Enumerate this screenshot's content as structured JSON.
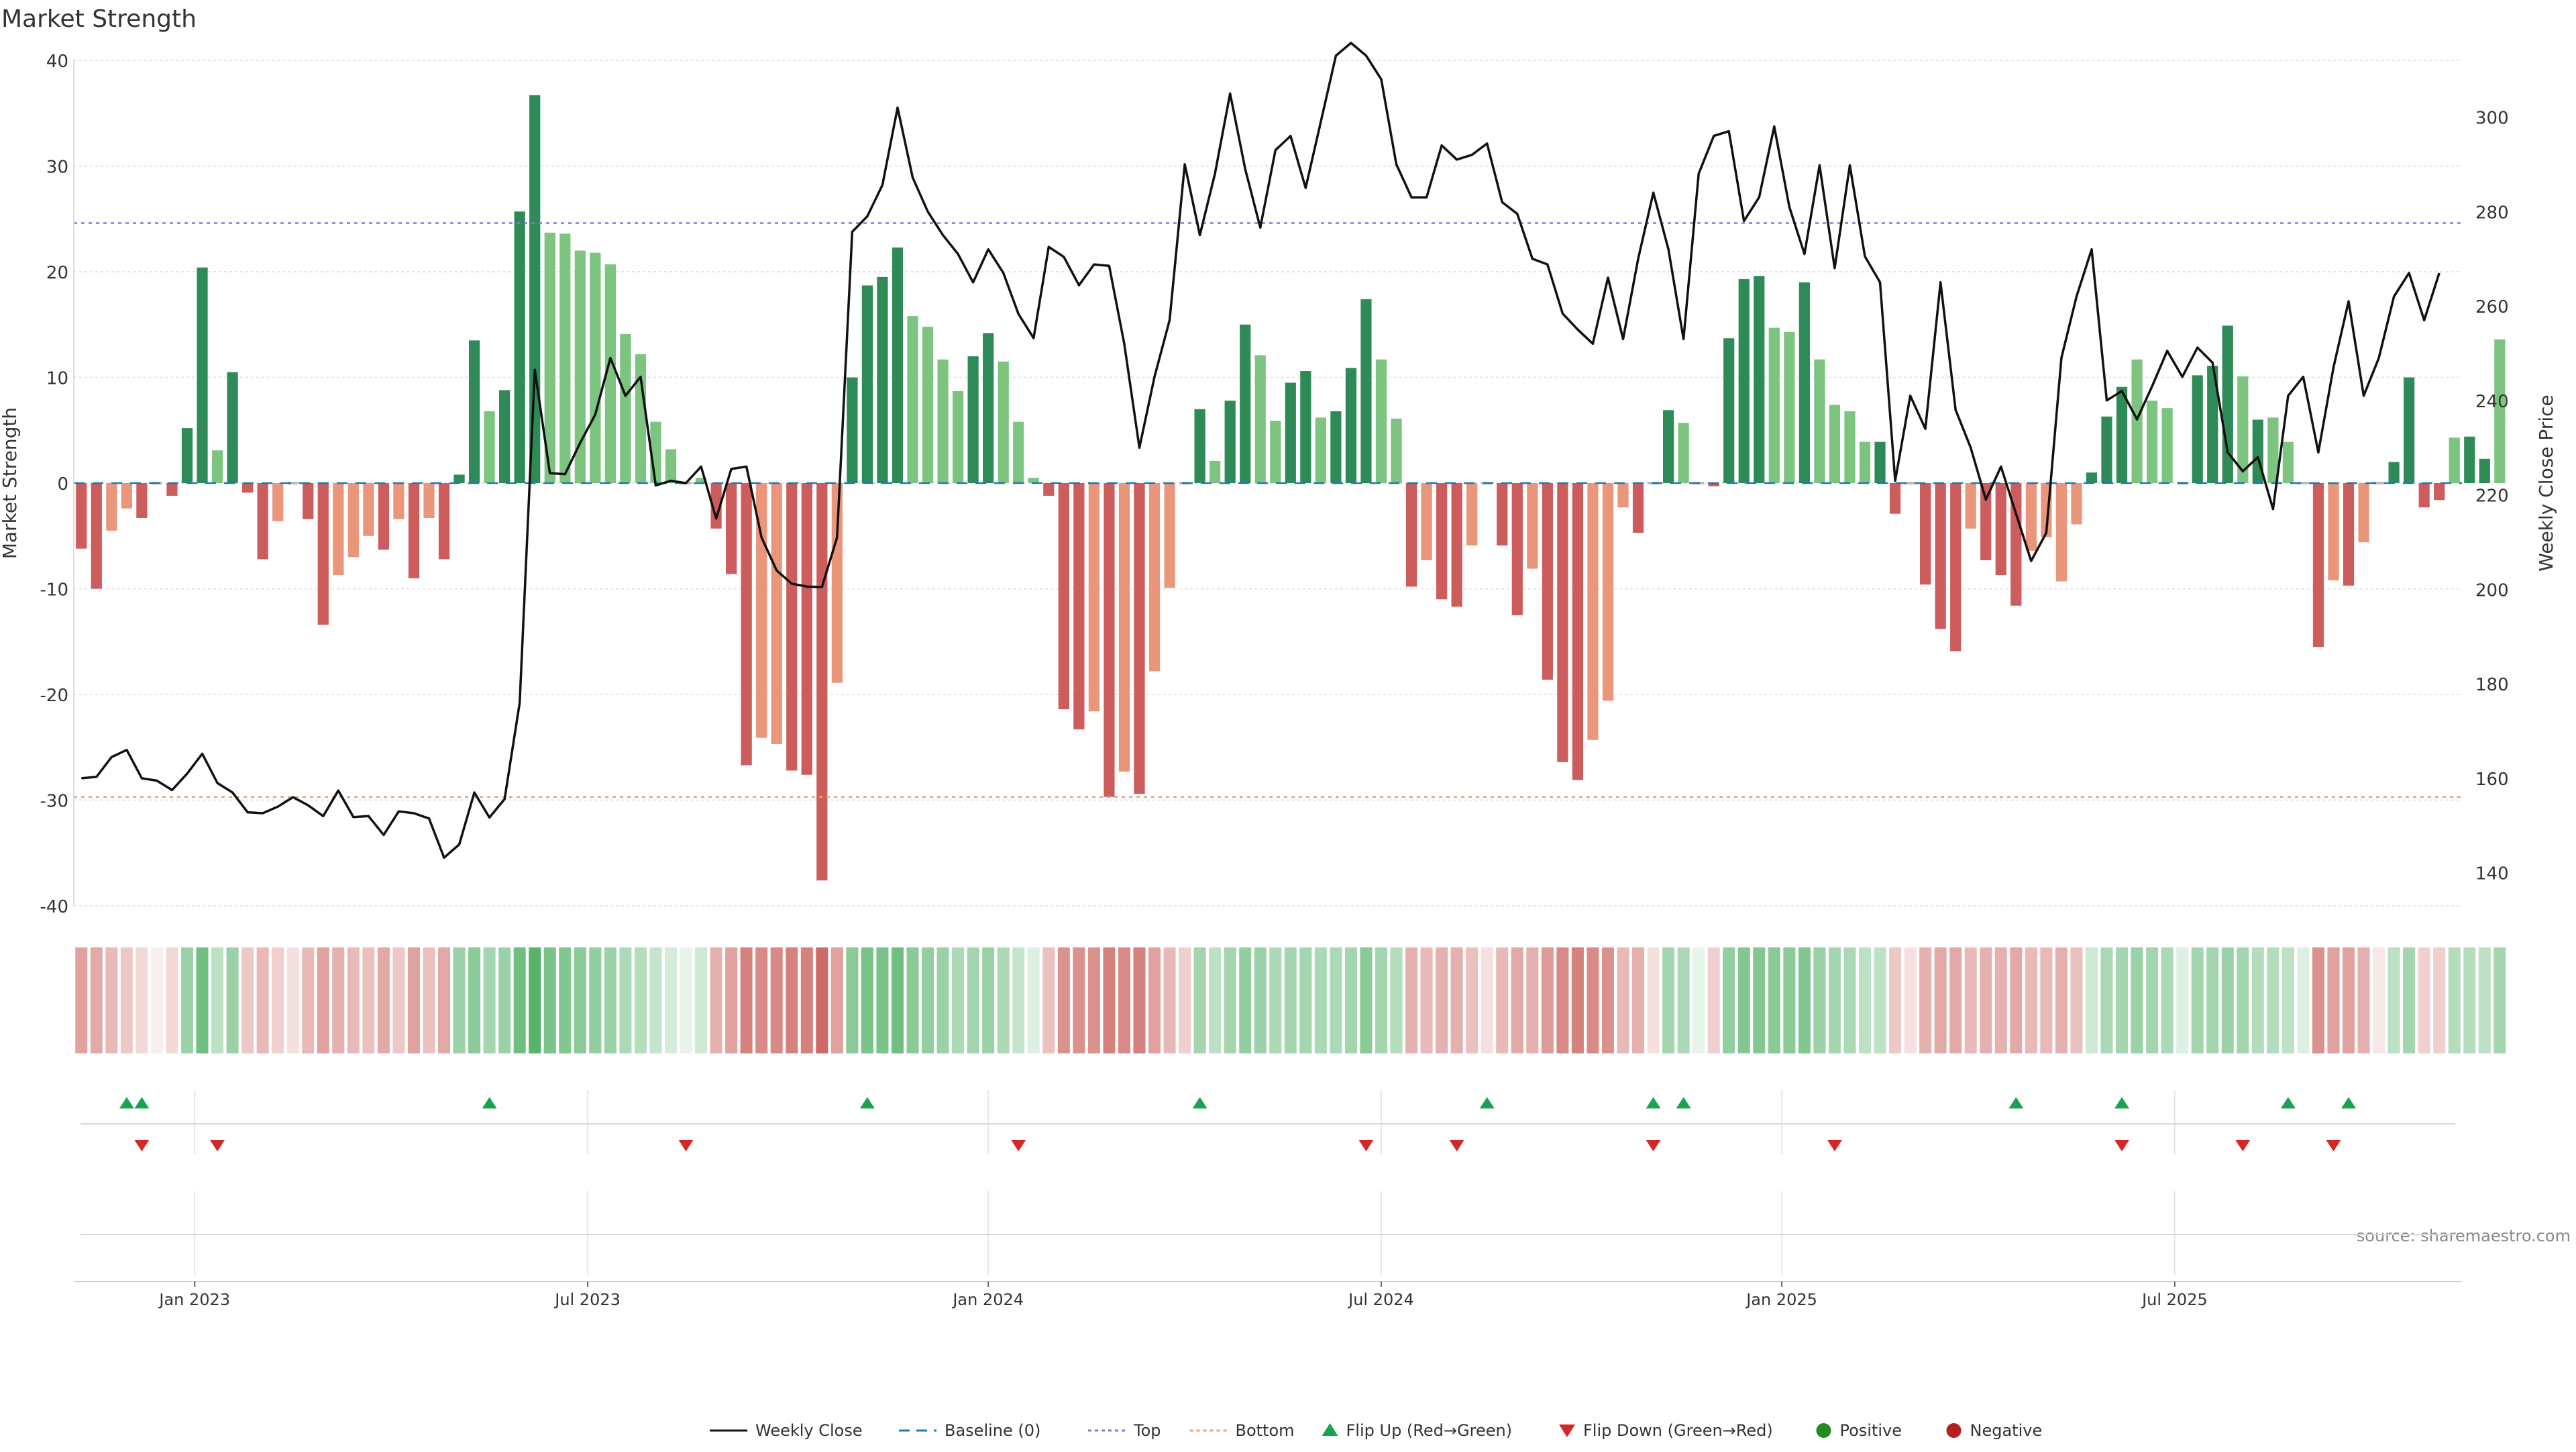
{
  "title": "Market Strength",
  "source": "source: sharemaestro.com",
  "colors": {
    "strong_green": "#2e8b57",
    "light_green": "#7cc47f",
    "strong_red": "#cd5c5c",
    "light_red": "#e9967a",
    "line": "#111111",
    "top": "#9370db",
    "bottom": "#e9a36f",
    "baseline": "#1f77b4",
    "flip_up": "#1aa251",
    "flip_down": "#d62728",
    "positive": "#228b22",
    "negative": "#b22222"
  },
  "chart_data": {
    "type": "bar+line",
    "title": "Market Strength",
    "ylabel": "Market Strength",
    "y2label": "Weekly Close Price",
    "ylim": [
      -40,
      40
    ],
    "y2lim": [
      133,
      312
    ],
    "yticks": [
      40,
      30,
      20,
      10,
      0,
      -10,
      -20,
      -30,
      -40
    ],
    "y2ticks": [
      300,
      280,
      260,
      240,
      220,
      200,
      180,
      160,
      140
    ],
    "top_line": 24.6,
    "bottom_line": -29.7,
    "xtick_labels": [
      {
        "label": "Jan 2023",
        "week": 8
      },
      {
        "label": "Jul 2023",
        "week": 34
      },
      {
        "label": "Jan 2024",
        "week": 60.5
      },
      {
        "label": "Jul 2024",
        "week": 86.5
      },
      {
        "label": "Jan 2025",
        "week": 113
      },
      {
        "label": "Jul 2025",
        "week": 139
      }
    ],
    "weeks": 158,
    "strength": [
      -6.2,
      -10,
      -4.5,
      -2.4,
      -3.3,
      0,
      -1.2,
      5.2,
      20.4,
      3.1,
      10.5,
      -0.9,
      -7.2,
      -3.6,
      0,
      -3.4,
      -13.4,
      -8.7,
      -7,
      -5,
      -6.3,
      -3.4,
      -9,
      -3.3,
      -7.2,
      0.8,
      13.5,
      6.8,
      8.8,
      25.7,
      36.7,
      23.7,
      23.6,
      22,
      21.8,
      20.7,
      14.1,
      12.2,
      5.8,
      3.2,
      0,
      0.5,
      -4.3,
      -8.6,
      -26.7,
      -24.1,
      -24.7,
      -27.2,
      -27.6,
      -37.6,
      -18.9,
      10,
      18.7,
      19.5,
      22.3,
      15.8,
      14.8,
      11.7,
      8.7,
      12,
      14.2,
      11.5,
      5.8,
      0.5,
      -1.2,
      -21.4,
      -23.3,
      -21.6,
      -29.7,
      -27.3,
      -29.4,
      -17.8,
      -9.9,
      0,
      7,
      2.1,
      7.8,
      15,
      12.1,
      5.9,
      9.5,
      10.6,
      6.2,
      6.8,
      10.9,
      17.4,
      11.7,
      6.1,
      -9.8,
      -7.3,
      -11,
      -11.7,
      -5.9,
      0,
      -5.9,
      -12.5,
      -8.1,
      -18.6,
      -26.4,
      -28.1,
      -24.3,
      -20.6,
      -2.3,
      -4.7,
      0,
      6.9,
      5.7,
      0,
      -0.3,
      13.7,
      19.3,
      19.6,
      14.7,
      14.3,
      19,
      11.7,
      7.4,
      6.8,
      3.9,
      3.9,
      -2.9,
      0,
      -9.6,
      -13.8,
      -15.9,
      -4.3,
      -7.3,
      -8.7,
      -11.6,
      -6.4,
      -5.1,
      -9.3,
      -3.9,
      1,
      6.3,
      9.1,
      11.7,
      7.8,
      7.1,
      0,
      10.2,
      11.1,
      14.9,
      10.1,
      6,
      6.2,
      3.9,
      0,
      -15.5,
      -9.2,
      -9.7,
      -5.6,
      0,
      2,
      10,
      -2.3,
      -1.6,
      4.3,
      4.4,
      2.3,
      13.6
    ],
    "bar_shade": [
      1,
      1,
      0,
      0,
      1,
      0,
      1,
      1,
      1,
      0,
      1,
      1,
      1,
      0,
      0,
      1,
      1,
      0,
      0,
      0,
      1,
      0,
      1,
      0,
      1,
      1,
      1,
      0,
      1,
      1,
      1,
      0,
      0,
      0,
      0,
      0,
      0,
      0,
      0,
      0,
      0,
      0,
      1,
      1,
      1,
      0,
      0,
      1,
      1,
      1,
      0,
      1,
      1,
      1,
      1,
      0,
      0,
      0,
      0,
      1,
      1,
      0,
      0,
      0,
      1,
      1,
      1,
      0,
      1,
      0,
      1,
      0,
      0,
      0,
      1,
      0,
      1,
      1,
      0,
      0,
      1,
      1,
      0,
      1,
      1,
      1,
      0,
      0,
      1,
      0,
      1,
      1,
      0,
      0,
      1,
      1,
      0,
      1,
      1,
      1,
      0,
      0,
      0,
      1,
      0,
      1,
      0,
      0,
      1,
      1,
      1,
      1,
      0,
      0,
      1,
      0,
      0,
      0,
      0,
      1,
      1,
      0,
      1,
      1,
      1,
      0,
      1,
      1,
      1,
      0,
      0,
      0,
      0,
      1,
      1,
      1,
      0,
      0,
      0,
      0,
      1,
      1,
      1,
      0,
      1,
      0,
      0,
      0,
      1,
      0,
      1,
      0,
      0,
      1,
      1,
      1,
      1,
      0,
      1,
      1
    ],
    "price": [
      160,
      160.3,
      164.5,
      166,
      160,
      159.5,
      157.5,
      161,
      165.2,
      159,
      157,
      152.8,
      152.6,
      154,
      156,
      154.3,
      152,
      157.4,
      151.8,
      152,
      148,
      153,
      152.6,
      151.5,
      143.2,
      146,
      157,
      151.7,
      155.6,
      176,
      246.5,
      224.6,
      224.4,
      231,
      237,
      249,
      241,
      245,
      222,
      223,
      222.5,
      226,
      215,
      225.5,
      226,
      211,
      204,
      201.2,
      200.6,
      200.5,
      211,
      275.7,
      279,
      285.6,
      302,
      287.2,
      280,
      275,
      271,
      265,
      272,
      267,
      258.3,
      253.2,
      272.5,
      270.4,
      264.4,
      268.8,
      268.5,
      252,
      230,
      245,
      257,
      290,
      275,
      288,
      305,
      289,
      276.6,
      293,
      296,
      285,
      299,
      313,
      315.7,
      313,
      308,
      290,
      283,
      283,
      294,
      291,
      292,
      294.4,
      282,
      279.5,
      270,
      268.8,
      258.4,
      255,
      252,
      266,
      253,
      270,
      284,
      272,
      253,
      288,
      296,
      297,
      278,
      283,
      298,
      281,
      271,
      289.8,
      268,
      289.8,
      270.5,
      265,
      223,
      241,
      234,
      265,
      238,
      230,
      219,
      226,
      216,
      206,
      212,
      249,
      262,
      272,
      240,
      242,
      236,
      243,
      250.5,
      245,
      251.2,
      248,
      229,
      225,
      228,
      217,
      241,
      245,
      229,
      247,
      261,
      241,
      249,
      262,
      267,
      257,
      267
    ],
    "flip_up_weeks": [
      3,
      4,
      27,
      52,
      74,
      93,
      104,
      106,
      128,
      135,
      146,
      150
    ],
    "flip_down_weeks": [
      4,
      9,
      40,
      62,
      85,
      91,
      104,
      116,
      135,
      143,
      149
    ],
    "heat_strength": [
      0.6,
      0.55,
      0.45,
      0.35,
      0.25,
      0.1,
      0.25,
      0.6,
      0.85,
      0.4,
      0.6,
      0.35,
      0.45,
      0.3,
      0.2,
      0.45,
      0.6,
      0.5,
      0.45,
      0.4,
      0.55,
      0.35,
      0.6,
      0.4,
      0.55,
      0.6,
      0.7,
      0.55,
      0.6,
      0.85,
      1,
      0.8,
      0.75,
      0.7,
      0.65,
      0.6,
      0.5,
      0.45,
      0.35,
      0.25,
      0.15,
      0.3,
      0.5,
      0.6,
      0.8,
      0.75,
      0.75,
      0.8,
      0.8,
      0.95,
      0.6,
      0.7,
      0.8,
      0.8,
      0.85,
      0.7,
      0.65,
      0.6,
      0.5,
      0.55,
      0.6,
      0.5,
      0.35,
      0.2,
      0.4,
      0.7,
      0.7,
      0.7,
      0.8,
      0.75,
      0.8,
      0.6,
      0.45,
      0.3,
      0.55,
      0.4,
      0.55,
      0.65,
      0.6,
      0.5,
      0.55,
      0.55,
      0.5,
      0.5,
      0.55,
      0.7,
      0.55,
      0.45,
      0.5,
      0.45,
      0.5,
      0.5,
      0.4,
      0.2,
      0.45,
      0.55,
      0.5,
      0.65,
      0.75,
      0.8,
      0.75,
      0.7,
      0.45,
      0.5,
      0.2,
      0.55,
      0.5,
      0.15,
      0.3,
      0.65,
      0.75,
      0.75,
      0.7,
      0.7,
      0.75,
      0.6,
      0.55,
      0.5,
      0.4,
      0.4,
      0.35,
      0.2,
      0.5,
      0.55,
      0.55,
      0.45,
      0.5,
      0.5,
      0.55,
      0.45,
      0.45,
      0.5,
      0.4,
      0.3,
      0.5,
      0.55,
      0.6,
      0.55,
      0.5,
      0.2,
      0.55,
      0.55,
      0.6,
      0.55,
      0.45,
      0.45,
      0.4,
      0.2,
      0.7,
      0.6,
      0.6,
      0.5,
      0.15,
      0.4,
      0.55,
      0.3,
      0.3,
      0.45,
      0.45,
      0.4,
      0.55
    ]
  },
  "legend": [
    {
      "key": "weekly_close",
      "label": "Weekly Close"
    },
    {
      "key": "baseline",
      "label": "Baseline (0)"
    },
    {
      "key": "top",
      "label": "Top"
    },
    {
      "key": "bottom",
      "label": "Bottom"
    },
    {
      "key": "flip_up",
      "label": "Flip Up (Red→Green)"
    },
    {
      "key": "flip_down",
      "label": "Flip Down (Green→Red)"
    },
    {
      "key": "positive",
      "label": "Positive"
    },
    {
      "key": "negative",
      "label": "Negative"
    }
  ]
}
